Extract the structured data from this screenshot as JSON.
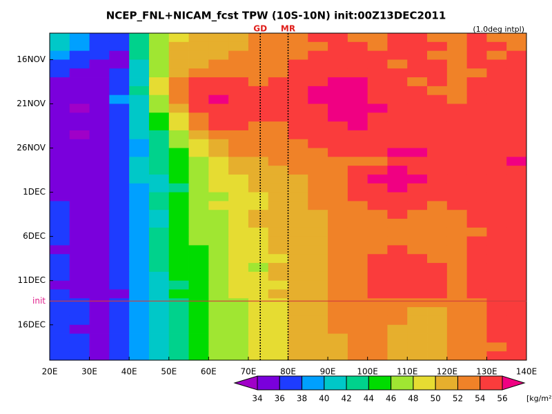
{
  "chart_data": {
    "type": "hovmoller",
    "title": "NCEP_FNL+NICAM_fcst TPW (10S-10N) init:00Z13DEC2011",
    "note": "(1.0deg intpl)",
    "x_bins": [
      20,
      25,
      30,
      35,
      40,
      45,
      50,
      55,
      60,
      65,
      70,
      75,
      80,
      85,
      90,
      95,
      100,
      105,
      110,
      115,
      120,
      125,
      130,
      135,
      140
    ],
    "xlim": [
      20,
      140
    ],
    "xticks": [
      {
        "value": 20,
        "label": "20E"
      },
      {
        "value": 30,
        "label": "30E"
      },
      {
        "value": 40,
        "label": "40E"
      },
      {
        "value": 50,
        "label": "50E"
      },
      {
        "value": 60,
        "label": "60E"
      },
      {
        "value": 70,
        "label": "70E"
      },
      {
        "value": 80,
        "label": "80E"
      },
      {
        "value": 90,
        "label": "90E"
      },
      {
        "value": 100,
        "label": "100E"
      },
      {
        "value": 110,
        "label": "110E"
      },
      {
        "value": 120,
        "label": "120E"
      },
      {
        "value": 130,
        "label": "130E"
      },
      {
        "value": 140,
        "label": "140E"
      }
    ],
    "categories": [
      null,
      null,
      null,
      "16NOV",
      null,
      null,
      null,
      null,
      "21NOV",
      null,
      null,
      null,
      null,
      "26NOV",
      null,
      null,
      null,
      null,
      "1DEC",
      null,
      null,
      null,
      null,
      "6DEC",
      null,
      null,
      null,
      null,
      "11DEC",
      null,
      "init",
      null,
      null,
      "16DEC",
      null,
      null,
      null
    ],
    "init_color": "#e0208c",
    "markers": [
      {
        "label": "GD",
        "x": 73
      },
      {
        "label": "MR",
        "x": 80
      }
    ],
    "marker_color": "#e0201c",
    "colorbar": {
      "levels": [
        34,
        36,
        38,
        40,
        42,
        44,
        46,
        48,
        50,
        52,
        54,
        56
      ],
      "colors": [
        "#a000c8",
        "#7a00dc",
        "#1e3cff",
        "#00a0ff",
        "#00c8c8",
        "#00d28c",
        "#00dc00",
        "#a0e632",
        "#e6dc32",
        "#e6af2d",
        "#f08228",
        "#fa3c3c",
        "#f00082"
      ],
      "unit": "[kg/m²]"
    },
    "z": [
      [
        40,
        38,
        37,
        36,
        43,
        47,
        49,
        50,
        50,
        51,
        52,
        53,
        53,
        54,
        54,
        53,
        53,
        54,
        54,
        53,
        53,
        54,
        53,
        53
      ],
      [
        40,
        38,
        36,
        36,
        42,
        46,
        50,
        50,
        51,
        51,
        52,
        53,
        53,
        53,
        54,
        54,
        53,
        54,
        54,
        54,
        53,
        54,
        54,
        53
      ],
      [
        38,
        37,
        36,
        35,
        42,
        46,
        50,
        51,
        51,
        52,
        52,
        52,
        53,
        54,
        54,
        54,
        54,
        54,
        54,
        53,
        53,
        54,
        53,
        54
      ],
      [
        37,
        36,
        35,
        35,
        41,
        47,
        50,
        51,
        52,
        52,
        53,
        53,
        54,
        54,
        55,
        54,
        54,
        53,
        54,
        54,
        53,
        54,
        54,
        54
      ],
      [
        36,
        35,
        35,
        36,
        40,
        47,
        51,
        52,
        53,
        53,
        53,
        53,
        54,
        55,
        55,
        55,
        54,
        54,
        54,
        54,
        53,
        53,
        54,
        54
      ],
      [
        35,
        35,
        35,
        37,
        41,
        48,
        52,
        54,
        54,
        54,
        53,
        54,
        55,
        55,
        56,
        56,
        55,
        54,
        53,
        54,
        53,
        54,
        54,
        55
      ],
      [
        34,
        34,
        35,
        37,
        42,
        48,
        53,
        55,
        55,
        55,
        54,
        54,
        55,
        56,
        57,
        56,
        55,
        54,
        54,
        53,
        53,
        54,
        54,
        55
      ],
      [
        34,
        34,
        35,
        38,
        41,
        47,
        52,
        55,
        56,
        55,
        54,
        54,
        55,
        56,
        57,
        57,
        55,
        54,
        54,
        54,
        53,
        54,
        55,
        55
      ],
      [
        34,
        33,
        35,
        37,
        40,
        46,
        51,
        54,
        55,
        55,
        54,
        54,
        55,
        55,
        56,
        57,
        56,
        54,
        54,
        54,
        54,
        55,
        54,
        55
      ],
      [
        34,
        34,
        35,
        37,
        40,
        45,
        49,
        53,
        54,
        54,
        54,
        54,
        54,
        55,
        56,
        56,
        55,
        55,
        54,
        54,
        54,
        54,
        55,
        55
      ],
      [
        34,
        34,
        35,
        37,
        40,
        44,
        48,
        52,
        54,
        54,
        53,
        53,
        54,
        55,
        55,
        56,
        55,
        54,
        54,
        54,
        55,
        55,
        54,
        55
      ],
      [
        34,
        33,
        35,
        37,
        40,
        43,
        47,
        50,
        53,
        53,
        53,
        53,
        54,
        54,
        55,
        55,
        55,
        54,
        54,
        55,
        55,
        55,
        55,
        55
      ],
      [
        34,
        34,
        35,
        37,
        39,
        42,
        46,
        49,
        51,
        52,
        53,
        53,
        53,
        54,
        54,
        55,
        55,
        55,
        55,
        55,
        54,
        55,
        55,
        55
      ],
      [
        35,
        34,
        35,
        37,
        39,
        42,
        45,
        48,
        50,
        52,
        52,
        53,
        53,
        53,
        54,
        54,
        55,
        56,
        56,
        55,
        54,
        54,
        55,
        55
      ],
      [
        35,
        34,
        35,
        37,
        40,
        42,
        44,
        47,
        49,
        51,
        51,
        52,
        52,
        53,
        53,
        53,
        53,
        55,
        55,
        55,
        54,
        54,
        55,
        56
      ],
      [
        35,
        34,
        35,
        37,
        40,
        42,
        44,
        46,
        48,
        50,
        50,
        51,
        52,
        52,
        53,
        54,
        55,
        56,
        55,
        54,
        55,
        54,
        55,
        55
      ],
      [
        35,
        34,
        35,
        37,
        40,
        41,
        44,
        46,
        48,
        49,
        50,
        51,
        51,
        52,
        53,
        54,
        56,
        57,
        56,
        55,
        55,
        54,
        55,
        55
      ],
      [
        35,
        34,
        34,
        37,
        39,
        41,
        43,
        46,
        48,
        49,
        50,
        50,
        51,
        52,
        53,
        54,
        55,
        56,
        55,
        54,
        55,
        55,
        55,
        55
      ],
      [
        35,
        35,
        35,
        36,
        39,
        42,
        44,
        46,
        47,
        48,
        49,
        50,
        51,
        52,
        53,
        54,
        54,
        55,
        55,
        54,
        54,
        55,
        55,
        55
      ],
      [
        36,
        35,
        35,
        36,
        38,
        42,
        45,
        47,
        48,
        48,
        49,
        50,
        51,
        52,
        52,
        53,
        54,
        54,
        54,
        53,
        54,
        54,
        55,
        55
      ],
      [
        36,
        35,
        35,
        36,
        38,
        41,
        44,
        46,
        47,
        49,
        50,
        50,
        51,
        51,
        52,
        53,
        53,
        54,
        53,
        53,
        53,
        54,
        55,
        55
      ],
      [
        36,
        35,
        34,
        36,
        38,
        41,
        44,
        46,
        47,
        49,
        50,
        50,
        51,
        51,
        52,
        52,
        53,
        53,
        53,
        52,
        53,
        54,
        54,
        55
      ],
      [
        36,
        35,
        35,
        36,
        39,
        42,
        45,
        46,
        47,
        48,
        49,
        50,
        50,
        51,
        52,
        52,
        53,
        53,
        52,
        52,
        53,
        53,
        54,
        55
      ],
      [
        36,
        35,
        35,
        36,
        39,
        42,
        44,
        46,
        47,
        48,
        48,
        50,
        50,
        51,
        52,
        53,
        53,
        53,
        53,
        52,
        53,
        54,
        55,
        55
      ],
      [
        35,
        35,
        34,
        36,
        38,
        42,
        44,
        45,
        47,
        48,
        49,
        50,
        50,
        51,
        52,
        53,
        53,
        54,
        53,
        52,
        53,
        54,
        54,
        55
      ],
      [
        36,
        35,
        34,
        36,
        38,
        42,
        44,
        45,
        47,
        48,
        49,
        49,
        50,
        51,
        52,
        53,
        54,
        54,
        54,
        53,
        53,
        54,
        55,
        55
      ],
      [
        36,
        35,
        34,
        36,
        38,
        42,
        44,
        45,
        46,
        48,
        47,
        50,
        50,
        51,
        52,
        53,
        54,
        55,
        54,
        54,
        53,
        54,
        55,
        55
      ],
      [
        36,
        34,
        34,
        36,
        38,
        41,
        44,
        45,
        47,
        48,
        49,
        50,
        50,
        51,
        52,
        53,
        54,
        55,
        55,
        54,
        53,
        54,
        54,
        55
      ],
      [
        35,
        35,
        34,
        36,
        38,
        41,
        43,
        45,
        47,
        48,
        49,
        49,
        50,
        51,
        52,
        53,
        54,
        55,
        55,
        54,
        53,
        54,
        55,
        55
      ],
      [
        36,
        35,
        34,
        35,
        38,
        41,
        44,
        45,
        47,
        48,
        49,
        50,
        50,
        51,
        52,
        52,
        54,
        55,
        55,
        54,
        53,
        54,
        55,
        55
      ],
      [
        37,
        36,
        35,
        36,
        38,
        41,
        43,
        45,
        46,
        47,
        48,
        49,
        50,
        51,
        52,
        53,
        53,
        53,
        52,
        52,
        52,
        53,
        54,
        55
      ],
      [
        37,
        36,
        35,
        36,
        38,
        41,
        43,
        45,
        46,
        47,
        48,
        49,
        50,
        51,
        52,
        53,
        53,
        52,
        51,
        51,
        52,
        53,
        54,
        55
      ],
      [
        37,
        36,
        34,
        36,
        38,
        40,
        43,
        45,
        46,
        47,
        48,
        49,
        50,
        51,
        52,
        52,
        52,
        52,
        51,
        51,
        52,
        53,
        54,
        55
      ],
      [
        37,
        35,
        35,
        36,
        38,
        41,
        43,
        44,
        46,
        47,
        48,
        49,
        50,
        51,
        52,
        52,
        52,
        51,
        51,
        51,
        52,
        53,
        54,
        54
      ],
      [
        37,
        36,
        35,
        36,
        38,
        41,
        43,
        45,
        46,
        47,
        48,
        49,
        50,
        51,
        51,
        52,
        52,
        51,
        51,
        51,
        52,
        53,
        54,
        55
      ],
      [
        37,
        36,
        35,
        36,
        38,
        40,
        42,
        45,
        46,
        47,
        48,
        49,
        50,
        50,
        51,
        52,
        52,
        51,
        51,
        51,
        52,
        53,
        53,
        55
      ],
      [
        37,
        36,
        35,
        36,
        38,
        40,
        43,
        44,
        46,
        47,
        48,
        48,
        50,
        51,
        51,
        52,
        52,
        51,
        51,
        51,
        52,
        52,
        54,
        55
      ]
    ]
  }
}
